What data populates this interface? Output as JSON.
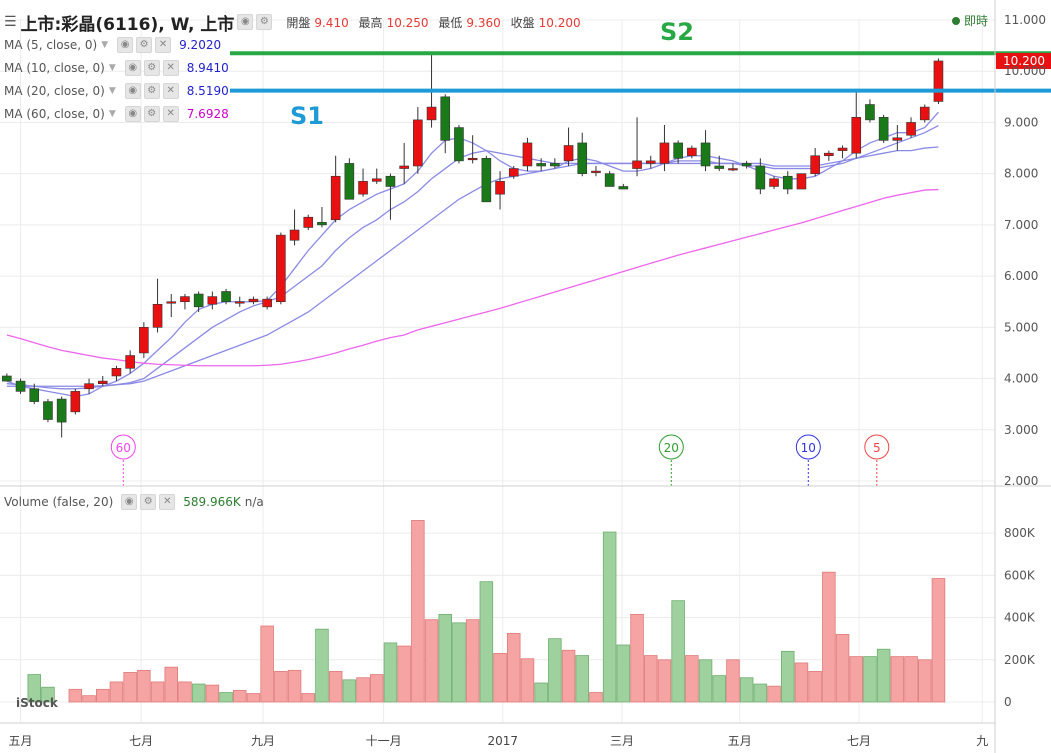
{
  "header": {
    "menu_glyph": "☰",
    "symbol": "上市:彩晶(6116), W, 上市",
    "open_label": "開盤",
    "open_value": "9.410",
    "high_label": "最高",
    "high_value": "10.250",
    "low_label": "最低",
    "low_value": "9.360",
    "close_label": "收盤",
    "close_value": "10.200",
    "live_label": "即時"
  },
  "ma_legend": [
    {
      "label": "MA (5, close, 0)",
      "value": "9.2020",
      "color": "#2222cc"
    },
    {
      "label": "MA (10, close, 0)",
      "value": "8.9410",
      "color": "#2222cc"
    },
    {
      "label": "MA (20, close, 0)",
      "value": "8.5190",
      "color": "#2222cc"
    },
    {
      "label": "MA (60, close, 0)",
      "value": "7.6928",
      "color": "#cc00cc"
    }
  ],
  "volume_legend": {
    "label": "Volume (false, 20)",
    "value": "589.966K",
    "extra": "n/a"
  },
  "annotations": {
    "s1": "S1",
    "s2": "S2",
    "s1_color": "#1e9ad6",
    "s2_color": "#27a844"
  },
  "logo_text": "iStock",
  "colors": {
    "up": "#e81010",
    "down": "#1a7a1a",
    "vol_up": "#f5a3a3",
    "vol_down": "#9fd19f",
    "ma_short": "#8a8ae6",
    "ma60": "#ee66ee"
  },
  "chart_data": {
    "type": "candlestick",
    "price_axis": {
      "ticks": [
        "2.000",
        "3.000",
        "4.000",
        "5.000",
        "6.000",
        "7.000",
        "8.000",
        "9.000",
        "10.000",
        "11.000"
      ],
      "range": [
        2.0,
        11.0
      ]
    },
    "volume_axis": {
      "ticks": [
        "0",
        "200K",
        "400K",
        "600K",
        "800K"
      ],
      "range": [
        0,
        900
      ]
    },
    "time_labels": [
      {
        "label": "五月",
        "index": 1.5
      },
      {
        "label": "七月",
        "index": 10.3
      },
      {
        "label": "九月",
        "index": 19.2
      },
      {
        "label": "十一月",
        "index": 28.0
      },
      {
        "label": "2017",
        "index": 36.7
      },
      {
        "label": "三月",
        "index": 45.4
      },
      {
        "label": "五月",
        "index": 54.0
      },
      {
        "label": "七月",
        "index": 62.7
      },
      {
        "label": "九",
        "index": 71.7
      }
    ],
    "last_price_label": "10.200",
    "s1_level": 9.62,
    "s2_level": 10.35,
    "candles": [
      {
        "o": 4.05,
        "h": 4.1,
        "l": 3.95,
        "c": 3.95,
        "v": 0
      },
      {
        "o": 3.95,
        "h": 4.0,
        "l": 3.7,
        "c": 3.75,
        "v": 0
      },
      {
        "o": 3.8,
        "h": 3.9,
        "l": 3.5,
        "c": 3.55,
        "v": 130
      },
      {
        "o": 3.55,
        "h": 3.6,
        "l": 3.15,
        "c": 3.2,
        "v": 70
      },
      {
        "o": 3.6,
        "h": 3.65,
        "l": 2.85,
        "c": 3.15,
        "v": 0
      },
      {
        "o": 3.35,
        "h": 3.8,
        "l": 3.3,
        "c": 3.75,
        "v": 60
      },
      {
        "o": 3.8,
        "h": 4.0,
        "l": 3.7,
        "c": 3.9,
        "v": 30
      },
      {
        "o": 3.9,
        "h": 4.05,
        "l": 3.85,
        "c": 3.95,
        "v": 60
      },
      {
        "o": 4.05,
        "h": 4.25,
        "l": 3.95,
        "c": 4.2,
        "v": 95
      },
      {
        "o": 4.2,
        "h": 4.55,
        "l": 4.1,
        "c": 4.45,
        "v": 140
      },
      {
        "o": 4.5,
        "h": 5.1,
        "l": 4.4,
        "c": 5.0,
        "v": 150
      },
      {
        "o": 5.0,
        "h": 5.95,
        "l": 4.9,
        "c": 5.45,
        "v": 95
      },
      {
        "o": 5.5,
        "h": 5.65,
        "l": 5.2,
        "c": 5.5,
        "v": 165
      },
      {
        "o": 5.5,
        "h": 5.65,
        "l": 5.35,
        "c": 5.6,
        "v": 95
      },
      {
        "o": 5.65,
        "h": 5.7,
        "l": 5.3,
        "c": 5.4,
        "v": 85
      },
      {
        "o": 5.45,
        "h": 5.7,
        "l": 5.35,
        "c": 5.6,
        "v": 80
      },
      {
        "o": 5.7,
        "h": 5.75,
        "l": 5.45,
        "c": 5.5,
        "v": 45
      },
      {
        "o": 5.5,
        "h": 5.6,
        "l": 5.4,
        "c": 5.5,
        "v": 55
      },
      {
        "o": 5.5,
        "h": 5.6,
        "l": 5.45,
        "c": 5.55,
        "v": 40
      },
      {
        "o": 5.4,
        "h": 5.6,
        "l": 5.35,
        "c": 5.55,
        "v": 360
      },
      {
        "o": 5.5,
        "h": 6.85,
        "l": 5.45,
        "c": 6.8,
        "v": 145
      },
      {
        "o": 6.7,
        "h": 7.3,
        "l": 6.6,
        "c": 6.9,
        "v": 150
      },
      {
        "o": 6.95,
        "h": 7.2,
        "l": 6.9,
        "c": 7.15,
        "v": 40
      },
      {
        "o": 7.05,
        "h": 7.35,
        "l": 6.95,
        "c": 7.0,
        "v": 345
      },
      {
        "o": 7.1,
        "h": 8.35,
        "l": 7.05,
        "c": 7.95,
        "v": 145
      },
      {
        "o": 8.2,
        "h": 8.3,
        "l": 7.5,
        "c": 7.5,
        "v": 105
      },
      {
        "o": 7.6,
        "h": 8.1,
        "l": 7.55,
        "c": 7.85,
        "v": 115
      },
      {
        "o": 7.85,
        "h": 8.1,
        "l": 7.8,
        "c": 7.9,
        "v": 130
      },
      {
        "o": 7.95,
        "h": 8.0,
        "l": 7.1,
        "c": 7.75,
        "v": 280
      },
      {
        "o": 8.1,
        "h": 8.6,
        "l": 7.8,
        "c": 8.15,
        "v": 265
      },
      {
        "o": 8.15,
        "h": 9.3,
        "l": 8.0,
        "c": 9.05,
        "v": 860
      },
      {
        "o": 9.05,
        "h": 10.35,
        "l": 8.9,
        "c": 9.3,
        "v": 390
      },
      {
        "o": 9.5,
        "h": 9.55,
        "l": 8.4,
        "c": 8.65,
        "v": 415
      },
      {
        "o": 8.9,
        "h": 8.95,
        "l": 8.2,
        "c": 8.25,
        "v": 375
      },
      {
        "o": 8.3,
        "h": 8.75,
        "l": 8.2,
        "c": 8.3,
        "v": 390
      },
      {
        "o": 8.3,
        "h": 8.35,
        "l": 7.45,
        "c": 7.45,
        "v": 570
      },
      {
        "o": 7.6,
        "h": 8.05,
        "l": 7.3,
        "c": 7.85,
        "v": 230
      },
      {
        "o": 7.95,
        "h": 8.15,
        "l": 7.9,
        "c": 8.1,
        "v": 325
      },
      {
        "o": 8.15,
        "h": 8.7,
        "l": 8.05,
        "c": 8.6,
        "v": 205
      },
      {
        "o": 8.2,
        "h": 8.3,
        "l": 8.05,
        "c": 8.15,
        "v": 90
      },
      {
        "o": 8.2,
        "h": 8.3,
        "l": 8.1,
        "c": 8.15,
        "v": 300
      },
      {
        "o": 8.25,
        "h": 8.9,
        "l": 8.15,
        "c": 8.55,
        "v": 245
      },
      {
        "o": 8.6,
        "h": 8.8,
        "l": 7.95,
        "c": 8.0,
        "v": 220
      },
      {
        "o": 8.05,
        "h": 8.15,
        "l": 7.95,
        "c": 8.05,
        "v": 45
      },
      {
        "o": 8.0,
        "h": 8.05,
        "l": 7.75,
        "c": 7.75,
        "v": 805
      },
      {
        "o": 7.75,
        "h": 7.8,
        "l": 7.7,
        "c": 7.7,
        "v": 270
      },
      {
        "o": 8.1,
        "h": 9.1,
        "l": 7.95,
        "c": 8.25,
        "v": 415
      },
      {
        "o": 8.2,
        "h": 8.35,
        "l": 8.1,
        "c": 8.25,
        "v": 220
      },
      {
        "o": 8.2,
        "h": 8.95,
        "l": 8.05,
        "c": 8.6,
        "v": 200
      },
      {
        "o": 8.6,
        "h": 8.65,
        "l": 8.2,
        "c": 8.3,
        "v": 480
      },
      {
        "o": 8.35,
        "h": 8.55,
        "l": 8.3,
        "c": 8.5,
        "v": 220
      },
      {
        "o": 8.6,
        "h": 8.85,
        "l": 8.05,
        "c": 8.15,
        "v": 200
      },
      {
        "o": 8.15,
        "h": 8.35,
        "l": 8.05,
        "c": 8.1,
        "v": 125
      },
      {
        "o": 8.1,
        "h": 8.2,
        "l": 8.05,
        "c": 8.1,
        "v": 200
      },
      {
        "o": 8.2,
        "h": 8.25,
        "l": 8.1,
        "c": 8.15,
        "v": 115
      },
      {
        "o": 8.15,
        "h": 8.3,
        "l": 7.6,
        "c": 7.7,
        "v": 85
      },
      {
        "o": 7.75,
        "h": 7.95,
        "l": 7.7,
        "c": 7.9,
        "v": 75
      },
      {
        "o": 7.95,
        "h": 8.05,
        "l": 7.6,
        "c": 7.7,
        "v": 240
      },
      {
        "o": 7.7,
        "h": 8.0,
        "l": 7.7,
        "c": 8.0,
        "v": 185
      },
      {
        "o": 8.0,
        "h": 8.5,
        "l": 7.95,
        "c": 8.35,
        "v": 145
      },
      {
        "o": 8.35,
        "h": 8.45,
        "l": 8.25,
        "c": 8.4,
        "v": 615
      },
      {
        "o": 8.45,
        "h": 8.55,
        "l": 8.3,
        "c": 8.5,
        "v": 320
      },
      {
        "o": 8.4,
        "h": 9.65,
        "l": 8.3,
        "c": 9.1,
        "v": 215
      },
      {
        "o": 9.35,
        "h": 9.45,
        "l": 9.0,
        "c": 9.05,
        "v": 215
      },
      {
        "o": 9.1,
        "h": 9.15,
        "l": 8.6,
        "c": 8.65,
        "v": 250
      },
      {
        "o": 8.65,
        "h": 8.95,
        "l": 8.45,
        "c": 8.7,
        "v": 215
      },
      {
        "o": 8.75,
        "h": 9.1,
        "l": 8.7,
        "c": 9.0,
        "v": 215
      },
      {
        "o": 9.05,
        "h": 9.35,
        "l": 9.0,
        "c": 9.3,
        "v": 200
      },
      {
        "o": 9.41,
        "h": 10.25,
        "l": 9.36,
        "c": 10.2,
        "v": 585
      }
    ],
    "ma": [
      {
        "name": "MA (5, close, 0)",
        "color": "#8a8ae6",
        "values": [
          3.95,
          3.85,
          3.8,
          3.75,
          3.7,
          3.65,
          3.7,
          3.85,
          3.95,
          4.1,
          4.3,
          4.55,
          4.8,
          5.1,
          5.35,
          5.45,
          5.5,
          5.5,
          5.5,
          5.52,
          5.8,
          6.15,
          6.5,
          6.8,
          7.1,
          7.3,
          7.45,
          7.6,
          7.7,
          7.8,
          8.05,
          8.4,
          8.65,
          8.7,
          8.6,
          8.45,
          8.25,
          8.1,
          8.05,
          8.05,
          8.1,
          8.25,
          8.3,
          8.25,
          8.15,
          8.05,
          8.05,
          8.1,
          8.2,
          8.3,
          8.35,
          8.35,
          8.3,
          8.25,
          8.15,
          8.05,
          7.95,
          7.9,
          7.9,
          7.95,
          8.1,
          8.25,
          8.45,
          8.6,
          8.7,
          8.8,
          8.8,
          8.9,
          9.2
        ]
      },
      {
        "name": "MA (10, close, 0)",
        "color": "#8a8ae6",
        "values": [
          3.9,
          3.88,
          3.85,
          3.82,
          3.8,
          3.8,
          3.82,
          3.85,
          3.88,
          3.92,
          4.0,
          4.2,
          4.4,
          4.6,
          4.8,
          5.0,
          5.15,
          5.3,
          5.42,
          5.5,
          5.6,
          5.8,
          6.0,
          6.2,
          6.5,
          6.75,
          6.95,
          7.1,
          7.3,
          7.45,
          7.65,
          7.9,
          8.1,
          8.3,
          8.4,
          8.45,
          8.4,
          8.35,
          8.3,
          8.25,
          8.2,
          8.2,
          8.2,
          8.2,
          8.2,
          8.2,
          8.2,
          8.2,
          8.2,
          8.25,
          8.25,
          8.25,
          8.2,
          8.2,
          8.15,
          8.15,
          8.1,
          8.1,
          8.1,
          8.1,
          8.15,
          8.2,
          8.3,
          8.4,
          8.5,
          8.6,
          8.7,
          8.8,
          8.94
        ]
      },
      {
        "name": "MA (20, close, 0)",
        "color": "#8a8ae6",
        "values": [
          3.85,
          3.85,
          3.85,
          3.85,
          3.85,
          3.85,
          3.85,
          3.86,
          3.88,
          3.9,
          3.95,
          4.05,
          4.15,
          4.25,
          4.35,
          4.45,
          4.55,
          4.65,
          4.75,
          4.85,
          5.0,
          5.15,
          5.3,
          5.5,
          5.7,
          5.9,
          6.1,
          6.3,
          6.5,
          6.7,
          6.9,
          7.1,
          7.3,
          7.5,
          7.65,
          7.8,
          7.9,
          7.95,
          8.0,
          8.05,
          8.1,
          8.15,
          8.2,
          8.2,
          8.2,
          8.2,
          8.2,
          8.2,
          8.2,
          8.2,
          8.2,
          8.2,
          8.2,
          8.2,
          8.2,
          8.2,
          8.15,
          8.15,
          8.15,
          8.15,
          8.2,
          8.25,
          8.3,
          8.35,
          8.4,
          8.45,
          8.45,
          8.5,
          8.52
        ]
      },
      {
        "name": "MA (60, close, 0)",
        "color": "#ee66ee",
        "values": [
          4.85,
          4.78,
          4.7,
          4.62,
          4.55,
          4.5,
          4.45,
          4.4,
          4.37,
          4.33,
          4.3,
          4.28,
          4.27,
          4.26,
          4.25,
          4.25,
          4.25,
          4.25,
          4.25,
          4.26,
          4.28,
          4.32,
          4.37,
          4.43,
          4.5,
          4.58,
          4.65,
          4.73,
          4.8,
          4.85,
          4.95,
          5.02,
          5.09,
          5.16,
          5.23,
          5.3,
          5.37,
          5.45,
          5.53,
          5.61,
          5.69,
          5.77,
          5.85,
          5.93,
          6.01,
          6.09,
          6.17,
          6.25,
          6.33,
          6.41,
          6.48,
          6.55,
          6.62,
          6.69,
          6.76,
          6.83,
          6.9,
          6.97,
          7.04,
          7.12,
          7.2,
          7.28,
          7.36,
          7.44,
          7.52,
          7.58,
          7.63,
          7.68,
          7.69
        ]
      }
    ],
    "ma_markers": [
      {
        "label": "60",
        "index": 8.5,
        "color": "#ee44ee"
      },
      {
        "label": "20",
        "index": 48.5,
        "color": "#2e9e2e"
      },
      {
        "label": "10",
        "index": 58.5,
        "color": "#3333dd"
      },
      {
        "label": "5",
        "index": 63.5,
        "color": "#ee4444"
      }
    ]
  }
}
